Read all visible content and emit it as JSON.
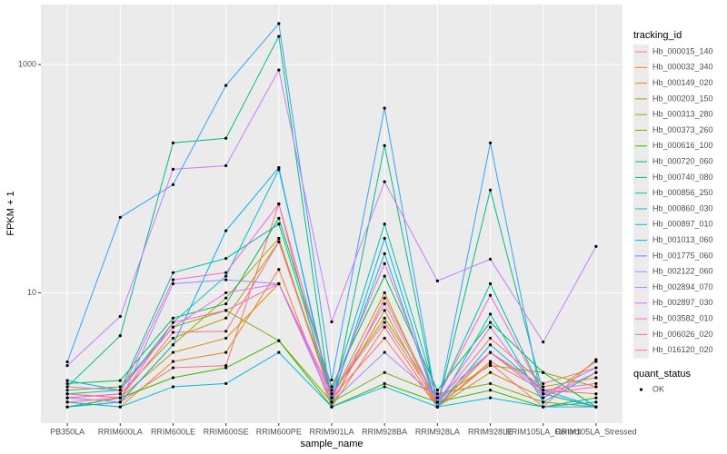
{
  "chart_data": {
    "type": "line",
    "x_label": "sample_name",
    "y_label": "FPKM + 1",
    "categories": [
      "PB350LA",
      "RRIM600LA",
      "RRIM600LE",
      "RRIM600SE",
      "RRIM600PE",
      "RRIM901LA",
      "RRIM928BA",
      "RRIM928LA",
      "RRIM928LE",
      "RRIM105LA_Control",
      "RRIM105LA_Stressed"
    ],
    "log_y": true,
    "ylim": [
      0.72,
      3360
    ],
    "yticks": [
      10,
      1000
    ],
    "grid": true,
    "legend_title": "tracking_id",
    "legend_position": "right",
    "shape_legend": {
      "title": "quant_status",
      "labels": [
        "OK"
      ]
    },
    "series": [
      {
        "name": "Hb_000015_140",
        "color": "#F8766D",
        "values": [
          1.2,
          1.1,
          2.2,
          2.3,
          60,
          1.0,
          9,
          1.1,
          4,
          1.6,
          2.2
        ]
      },
      {
        "name": "Hb_000032_340",
        "color": "#EA8331",
        "values": [
          1.1,
          1.0,
          2.5,
          3.0,
          16,
          1.0,
          5,
          1.0,
          2.5,
          1.4,
          1.3
        ]
      },
      {
        "name": "Hb_000149_020",
        "color": "#D89000",
        "values": [
          1.3,
          1.2,
          3.0,
          4.0,
          12,
          1.1,
          7,
          1.0,
          3.0,
          1.5,
          1.8
        ]
      },
      {
        "name": "Hb_000203_150",
        "color": "#C09B00",
        "values": [
          1.0,
          1.1,
          3.5,
          9.0,
          30,
          1.2,
          10,
          1.0,
          2.0,
          1.2,
          2.5
        ]
      },
      {
        "name": "Hb_000313_280",
        "color": "#A3A500",
        "values": [
          1.2,
          1.3,
          4.0,
          6.0,
          28,
          1.3,
          6,
          1.2,
          2.3,
          2.0,
          1.5
        ]
      },
      {
        "name": "Hb_000373_260",
        "color": "#7CAE00",
        "values": [
          1.4,
          1.5,
          5.0,
          7.0,
          3.8,
          1.1,
          2.0,
          1.3,
          1.6,
          1.1,
          1.0
        ]
      },
      {
        "name": "Hb_000616_100",
        "color": "#39B600",
        "values": [
          1.0,
          1.2,
          1.8,
          2.2,
          3.8,
          1.0,
          1.6,
          1.1,
          1.4,
          1.0,
          1.2
        ]
      },
      {
        "name": "Hb_000720_060",
        "color": "#00BB4E",
        "values": [
          1.6,
          1.7,
          6.0,
          8.0,
          45,
          1.5,
          14,
          1.4,
          5.5,
          2.0,
          1.0
        ]
      },
      {
        "name": "Hb_000740_080",
        "color": "#00BF7D",
        "values": [
          1.5,
          4.2,
          206,
          226,
          1767,
          1.0,
          195,
          1.0,
          79.5,
          1.3,
          1.0
        ]
      },
      {
        "name": "Hb_000856_250",
        "color": "#00C1A3",
        "values": [
          1.3,
          1.4,
          15,
          20,
          40,
          1.3,
          40,
          1.2,
          12,
          1.3,
          1.0
        ]
      },
      {
        "name": "Hb_000860_030",
        "color": "#00BFC4",
        "values": [
          1.7,
          1.4,
          5.5,
          14,
          120,
          1.2,
          22,
          1.0,
          6.5,
          1.1,
          2.0
        ]
      },
      {
        "name": "Hb_000897_010",
        "color": "#00BAE0",
        "values": [
          1.1,
          1.0,
          1.5,
          1.6,
          3.0,
          1.0,
          1.5,
          1.0,
          1.2,
          1.0,
          1.1
        ]
      },
      {
        "name": "Hb_001013_060",
        "color": "#00B0F6",
        "values": [
          1.0,
          1.1,
          3.5,
          35,
          125,
          1.1,
          30,
          1.0,
          3.5,
          1.4,
          1.0
        ]
      },
      {
        "name": "Hb_001775_060",
        "color": "#35A2FF",
        "values": [
          2.48,
          45.8,
          88.7,
          656,
          2286,
          1.72,
          415,
          1.0,
          206,
          1.0,
          1.0
        ]
      },
      {
        "name": "Hb_002122_060",
        "color": "#9590FF",
        "values": [
          1.2,
          1.1,
          12,
          13,
          12,
          1.1,
          3,
          1.2,
          3,
          1.3,
          2.2
        ]
      },
      {
        "name": "Hb_002894_070",
        "color": "#C77CFF",
        "values": [
          2.3,
          6.2,
          121,
          130,
          896,
          5.56,
          94,
          12.7,
          19.7,
          3.7,
          25.5
        ]
      },
      {
        "name": "Hb_002897_030",
        "color": "#E76BF3",
        "values": [
          1.5,
          1.4,
          5.0,
          10,
          12,
          1.2,
          8,
          1.1,
          5,
          1.2,
          2.0
        ]
      },
      {
        "name": "Hb_003582_010",
        "color": "#FA62DB",
        "values": [
          1.2,
          1.3,
          13,
          15,
          60,
          1.4,
          18,
          1.2,
          9.5,
          1.3,
          1.5
        ]
      },
      {
        "name": "Hb_006026_020",
        "color": "#FF62BC",
        "values": [
          1.1,
          1.2,
          5.5,
          7.0,
          12,
          1.3,
          5.5,
          1.1,
          3.0,
          1.4,
          1.6
        ]
      },
      {
        "name": "Hb_016120_020",
        "color": "#FF6C91",
        "values": [
          1.3,
          1.2,
          4.5,
          4.6,
          28,
          1.2,
          4.0,
          1.0,
          2.4,
          1.0,
          2.6
        ]
      }
    ]
  }
}
